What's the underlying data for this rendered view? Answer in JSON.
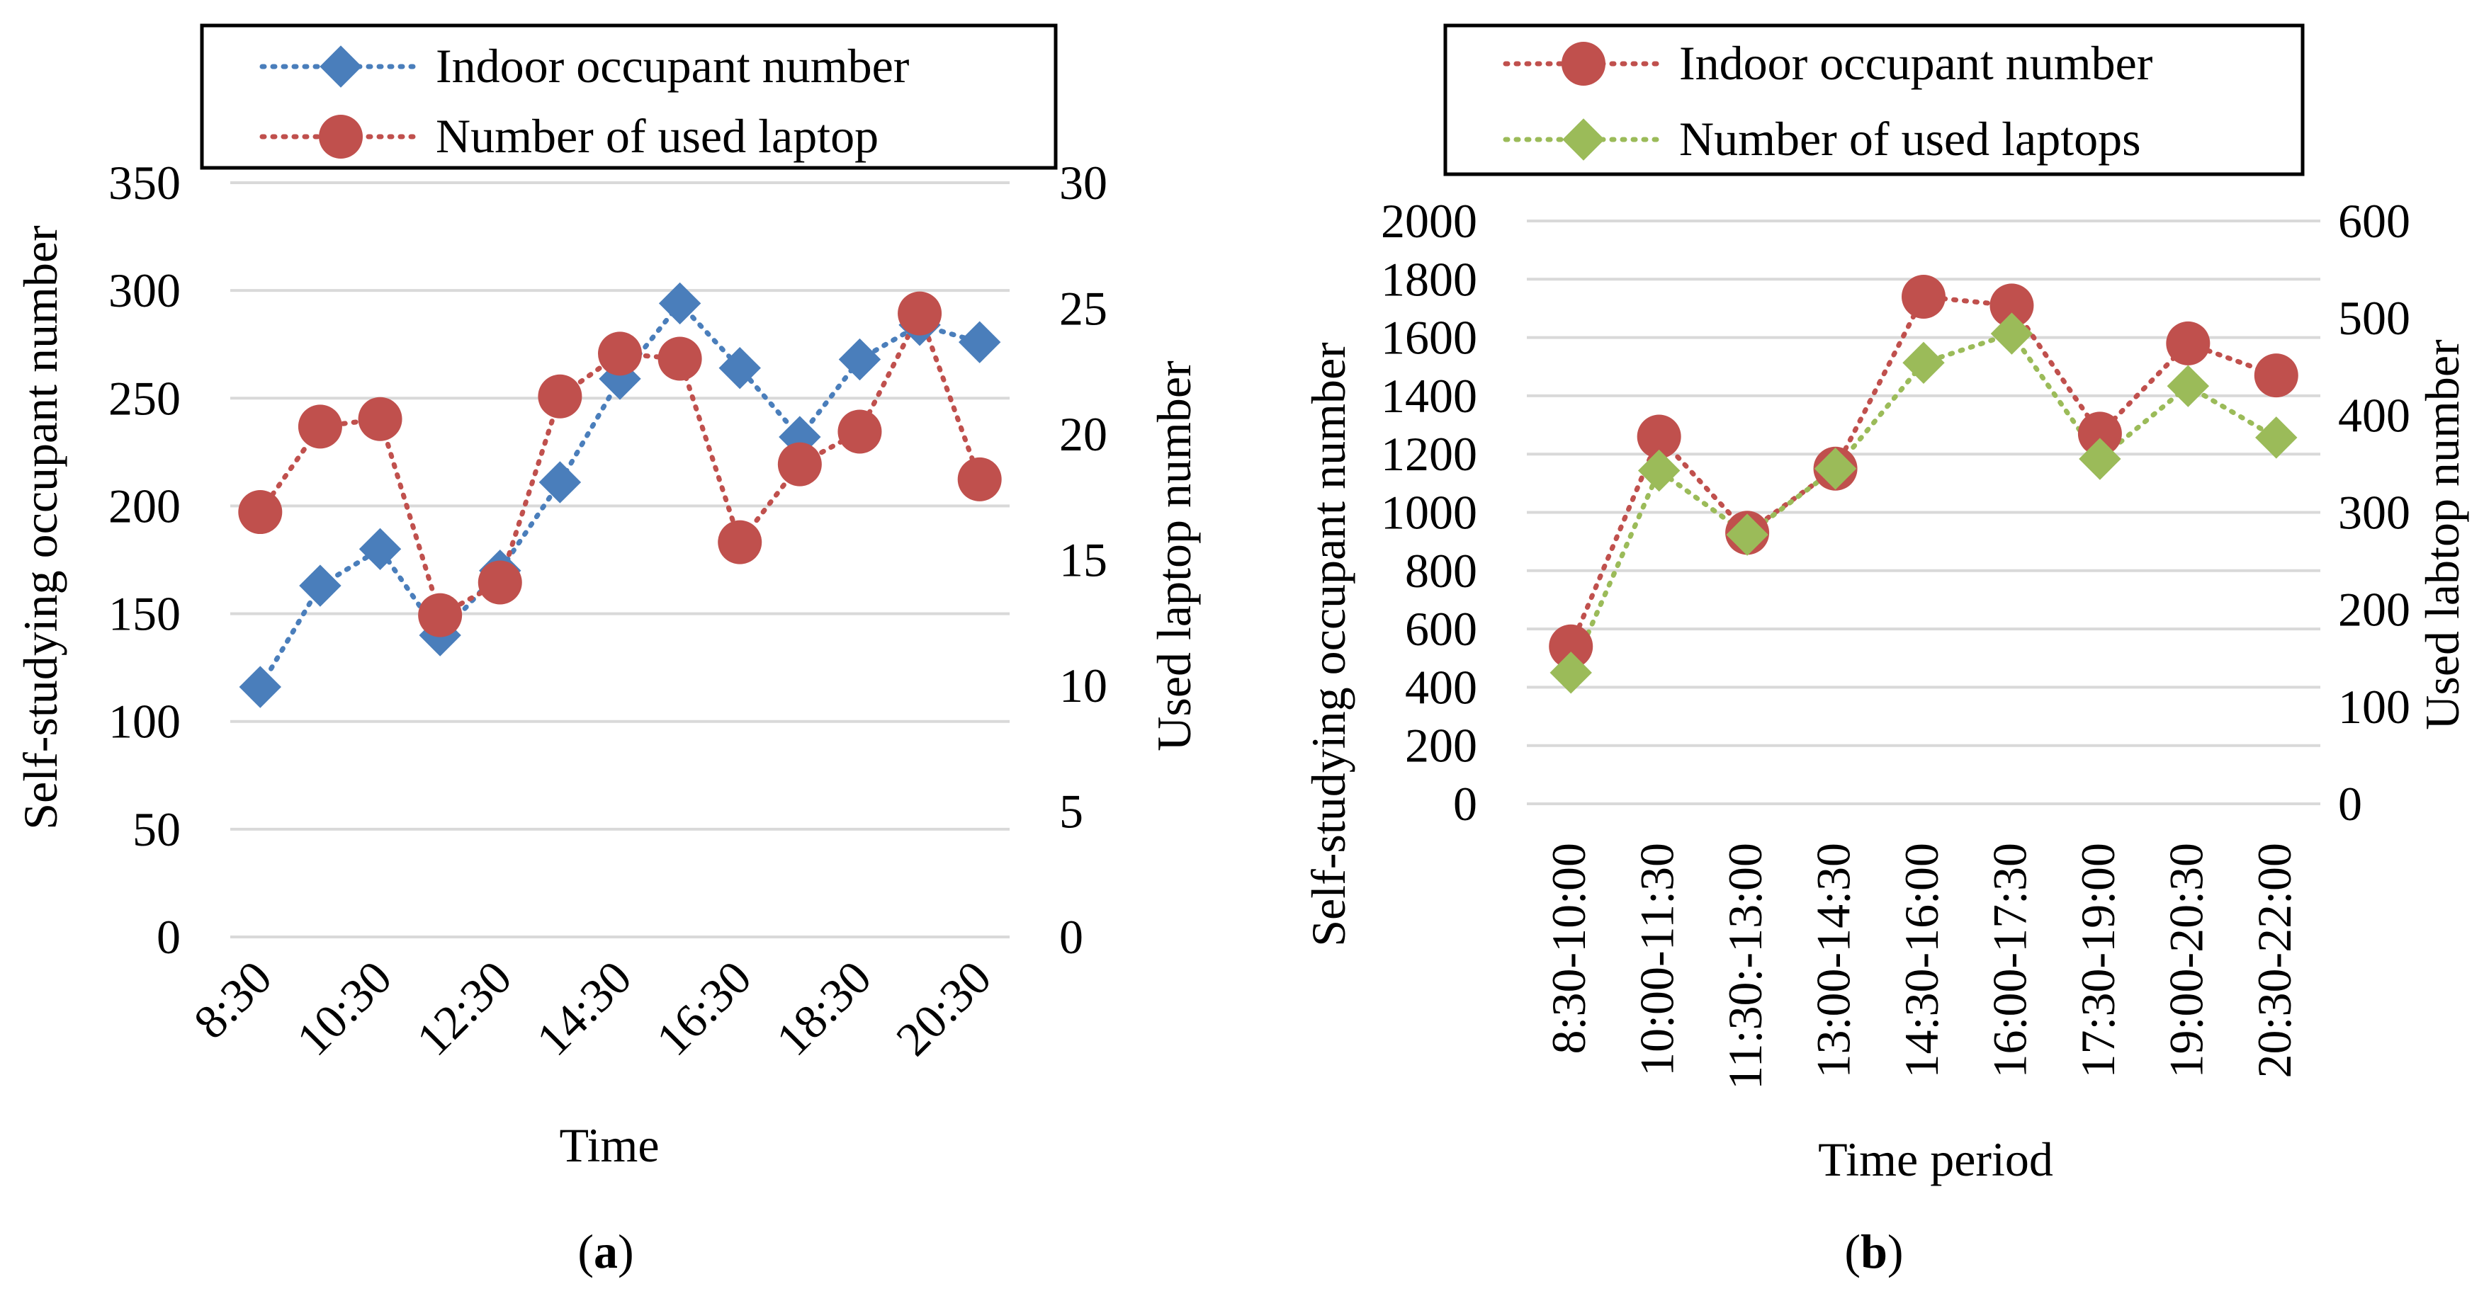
{
  "chart_data": [
    {
      "type": "line",
      "panel_label": "a",
      "xlabel": "Time",
      "ylabel": "Self-studying occupant number",
      "y2label": "Used laptop number",
      "ylim": [
        0,
        350
      ],
      "y2lim": [
        0,
        30
      ],
      "yticks": [
        0,
        50,
        100,
        150,
        200,
        250,
        300,
        350
      ],
      "y2ticks": [
        0,
        5,
        10,
        15,
        20,
        25,
        30
      ],
      "x": [
        "8:30",
        "9:30",
        "10:30",
        "11:30",
        "12:30",
        "13:30",
        "14:30",
        "15:30",
        "16:30",
        "17:30",
        "18:30",
        "19:30",
        "20:30"
      ],
      "xtick_labels": [
        "8:30",
        "10:30",
        "12:30",
        "14:30",
        "16:30",
        "18:30",
        "20:30"
      ],
      "series": [
        {
          "name": "Indoor occupant number",
          "axis": "left",
          "color": "#4a7ebb",
          "marker": "diamond",
          "values": [
            116,
            163,
            180,
            140,
            170,
            211,
            259,
            294,
            264,
            232,
            268,
            284,
            276
          ]
        },
        {
          "name": "Number of used laptop",
          "axis": "right",
          "color": "#c0504d",
          "marker": "circle",
          "values": [
            16.9,
            20.3,
            20.6,
            12.8,
            14.1,
            21.5,
            23.2,
            23.0,
            15.7,
            18.8,
            20.1,
            24.8,
            18.2
          ]
        }
      ]
    },
    {
      "type": "line",
      "panel_label": "b",
      "xlabel": "Time period",
      "ylabel": "Self-studying occupant number",
      "y2label": "Used labtop number",
      "ylim": [
        0,
        2000
      ],
      "y2lim": [
        0,
        600
      ],
      "yticks": [
        0,
        200,
        400,
        600,
        800,
        1000,
        1200,
        1400,
        1600,
        1800,
        2000
      ],
      "y2ticks": [
        0,
        100,
        200,
        300,
        400,
        500,
        600
      ],
      "categories": [
        "8:30-10:00",
        "10:00-11:30",
        "11:30:-13:00",
        "13:00-14:30",
        "14:30-16:00",
        "16:00-17:30",
        "17:30-19:00",
        "19:00-20:30",
        "20:30-22:00"
      ],
      "series": [
        {
          "name": "Indoor occupant number",
          "axis": "left",
          "color": "#c0504d",
          "marker": "circle",
          "values": [
            540,
            1260,
            930,
            1150,
            1740,
            1710,
            1270,
            1580,
            1470
          ]
        },
        {
          "name": "Number of used laptops",
          "axis": "right",
          "color": "#9bbb59",
          "marker": "diamond",
          "values": [
            135,
            343,
            277,
            345,
            454,
            484,
            355,
            430,
            377
          ]
        }
      ]
    }
  ]
}
